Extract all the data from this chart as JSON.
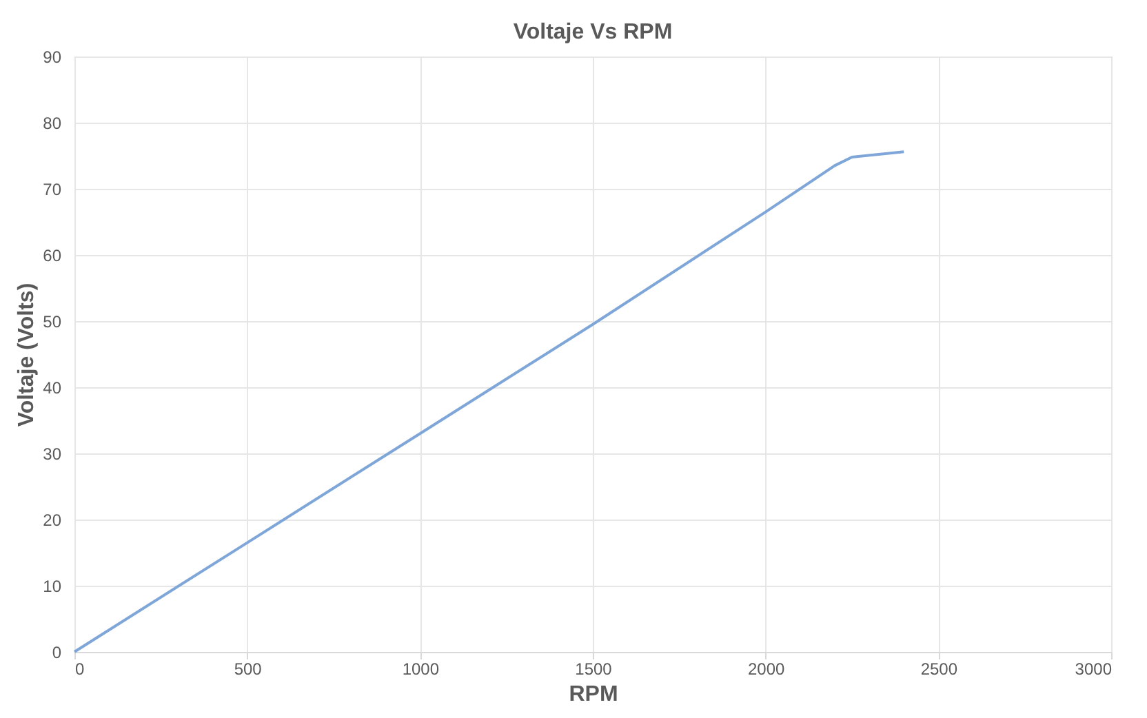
{
  "chart_data": {
    "type": "line",
    "title": "Voltaje Vs RPM",
    "xlabel": "RPM",
    "ylabel": "Voltaje (Volts)",
    "x": [
      0,
      500,
      1000,
      1500,
      2000,
      2200,
      2250,
      2400
    ],
    "series": [
      {
        "color": "#7ea6d8",
        "values": [
          0,
          16.5,
          33,
          49.5,
          66.5,
          73.5,
          74.8,
          75.6
        ]
      }
    ],
    "xlim": [
      0,
      3000
    ],
    "xticks": [
      0,
      500,
      1000,
      1500,
      2000,
      2500,
      3000
    ],
    "ylim": [
      0,
      90
    ],
    "yticks": [
      0,
      10,
      20,
      30,
      40,
      50,
      60,
      70,
      80,
      90
    ],
    "grid": true,
    "marker": "none",
    "line_style": "solid"
  }
}
